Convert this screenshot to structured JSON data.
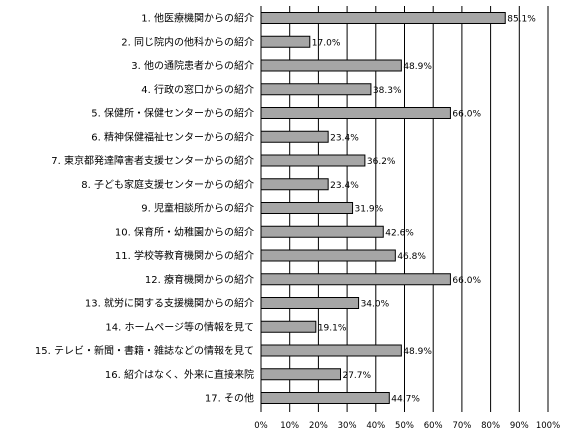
{
  "chart_data": {
    "type": "bar",
    "orientation": "horizontal",
    "categories": [
      "1. 他医療機関からの紹介",
      "2. 同じ院内の他科からの紹介",
      "3. 他の通院患者からの紹介",
      "4. 行政の窓口からの紹介",
      "5. 保健所・保健センターからの紹介",
      "6. 精神保健福祉センターからの紹介",
      "7. 東京都発達障害者支援センターからの紹介",
      "8. 子ども家庭支援センターからの紹介",
      "9. 児童相談所からの紹介",
      "10. 保育所・幼稚園からの紹介",
      "11. 学校等教育機関からの紹介",
      "12. 療育機関からの紹介",
      "13. 就労に関する支援機関からの紹介",
      "14. ホームページ等の情報を見て",
      "15. テレビ・新聞・書籍・雑誌などの情報を見て",
      "16. 紹介はなく、外来に直接来院",
      "17. その他"
    ],
    "values": [
      85.1,
      17.0,
      48.9,
      38.3,
      66.0,
      23.4,
      36.2,
      23.4,
      31.9,
      42.6,
      46.8,
      66.0,
      34.0,
      19.1,
      48.9,
      27.7,
      44.7
    ],
    "value_labels": [
      "85.1%",
      "17.0%",
      "48.9%",
      "38.3%",
      "66.0%",
      "23.4%",
      "36.2%",
      "23.4%",
      "31.9%",
      "42.6%",
      "46.8%",
      "66.0%",
      "34.0%",
      "19.1%",
      "48.9%",
      "27.7%",
      "44.7%"
    ],
    "xlim": [
      0,
      100
    ],
    "x_ticks": [
      "0%",
      "10%",
      "20%",
      "30%",
      "40%",
      "50%",
      "60%",
      "70%",
      "80%",
      "90%",
      "100%"
    ],
    "grid": "vertical",
    "bar_color": "#a6a6a6",
    "title": "",
    "xlabel": "",
    "ylabel": ""
  }
}
